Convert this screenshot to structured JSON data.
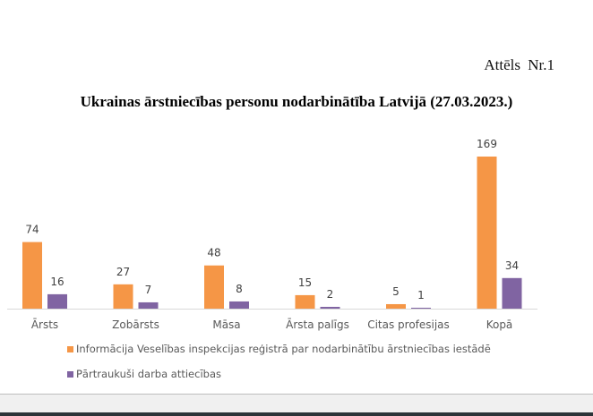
{
  "figure_label": "Attēls  Nr.1",
  "chart_data": {
    "type": "bar",
    "title": "Ukrainas ārstniecības personu nodarbinātība Latvijā (27.03.2023.)",
    "xlabel": "",
    "ylabel": "",
    "ylim": [
      0,
      169
    ],
    "grid": false,
    "legend_position": "bottom-left",
    "categories": [
      "Ārsts",
      "Zobārsts",
      "Māsa",
      "Ārsta palīgs",
      "Citas profesijas",
      "Kopā"
    ],
    "series": [
      {
        "name": "Informācija Veselības inspekcijas reģistrā par nodarbinātību ārstniecības iestādē",
        "color": "#f59646",
        "values": [
          74,
          27,
          48,
          15,
          5,
          169
        ]
      },
      {
        "name": "Pārtraukuši darba attiecības",
        "color": "#8064a2",
        "values": [
          16,
          7,
          8,
          2,
          1,
          34
        ]
      }
    ],
    "data_labels": true
  }
}
